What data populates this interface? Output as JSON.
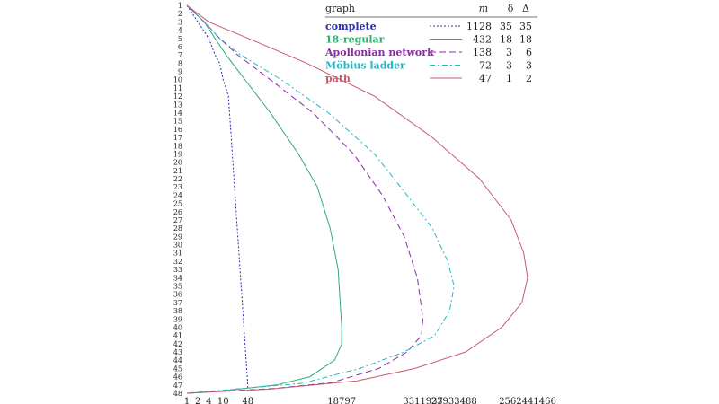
{
  "chart_data": {
    "type": "line",
    "title": "",
    "xlabel": "",
    "ylabel": "",
    "x_scale": "log",
    "x_ticks": [
      1,
      2,
      4,
      10,
      48,
      18797,
      3311937,
      23933488,
      2562441466
    ],
    "y_ticks": [
      1,
      2,
      3,
      4,
      5,
      6,
      7,
      8,
      9,
      10,
      11,
      12,
      13,
      14,
      15,
      16,
      17,
      18,
      19,
      20,
      21,
      22,
      23,
      24,
      25,
      26,
      27,
      28,
      29,
      30,
      31,
      32,
      33,
      34,
      35,
      36,
      37,
      38,
      39,
      40,
      41,
      42,
      43,
      44,
      45,
      46,
      47,
      48
    ],
    "y_inverted": true,
    "grid": false,
    "legend": {
      "placement": "top-right",
      "headers": {
        "graph": "graph",
        "m": "m",
        "delta_min": "δ",
        "delta_max": "Δ"
      }
    },
    "series": [
      {
        "name": "complete",
        "m": "1128",
        "delta_min": "35",
        "delta_max": "35",
        "color": "#2a2ab4",
        "dash": "2,2",
        "points": [
          [
            1,
            1
          ],
          [
            2,
            3
          ],
          [
            4,
            5
          ],
          [
            6,
            7
          ],
          [
            8,
            8
          ],
          [
            10,
            10
          ],
          [
            14,
            12
          ],
          [
            48,
            47
          ],
          [
            48,
            48
          ]
        ]
      },
      {
        "name": "18-regular",
        "m": "432",
        "delta_min": "18",
        "delta_max": "18",
        "color": "#2fae6e",
        "dash": "",
        "points": [
          [
            1,
            1
          ],
          [
            3,
            3
          ],
          [
            6,
            5
          ],
          [
            12,
            7
          ],
          [
            40,
            10
          ],
          [
            200,
            14
          ],
          [
            1200,
            19
          ],
          [
            4000,
            23
          ],
          [
            9000,
            28
          ],
          [
            15000,
            33
          ],
          [
            18797,
            40
          ],
          [
            18797,
            42
          ],
          [
            12000,
            44
          ],
          [
            2500,
            46
          ],
          [
            300,
            47
          ],
          [
            10,
            47.7
          ],
          [
            1,
            48
          ]
        ]
      },
      {
        "name": "Apollonian network",
        "m": "138",
        "delta_min": "3",
        "delta_max": "6",
        "color": "#8b2aa8",
        "dash": "7,4",
        "points": [
          [
            1,
            1
          ],
          [
            3,
            3
          ],
          [
            8,
            5
          ],
          [
            25,
            7
          ],
          [
            200,
            10
          ],
          [
            3000,
            14
          ],
          [
            40000,
            19
          ],
          [
            250000,
            24
          ],
          [
            1000000,
            29
          ],
          [
            2300000,
            34
          ],
          [
            3311937,
            39
          ],
          [
            3000000,
            41
          ],
          [
            1200000,
            43
          ],
          [
            200000,
            45
          ],
          [
            10000,
            46.7
          ],
          [
            300,
            47.4
          ],
          [
            1,
            48
          ]
        ]
      },
      {
        "name": "Möbius ladder",
        "m": "72",
        "delta_min": "3",
        "delta_max": "3",
        "color": "#23b6c6",
        "dash": "6,3,2,3",
        "points": [
          [
            1,
            1
          ],
          [
            3,
            3
          ],
          [
            8,
            5
          ],
          [
            30,
            7
          ],
          [
            400,
            10
          ],
          [
            8000,
            14
          ],
          [
            150000,
            19
          ],
          [
            1200000,
            24
          ],
          [
            6000000,
            28
          ],
          [
            16000000,
            32
          ],
          [
            23933488,
            35
          ],
          [
            18000000,
            38
          ],
          [
            7000000,
            41
          ],
          [
            1000000,
            43
          ],
          [
            60000,
            45
          ],
          [
            1500,
            46.8
          ],
          [
            1,
            48
          ]
        ]
      },
      {
        "name": "path",
        "m": "47",
        "delta_min": "1",
        "delta_max": "2",
        "color": "#c85a6c",
        "dash": "",
        "points": [
          [
            1,
            1
          ],
          [
            4,
            3
          ],
          [
            50,
            5
          ],
          [
            2000,
            8
          ],
          [
            150000,
            12
          ],
          [
            6000000,
            17
          ],
          [
            120000000,
            22
          ],
          [
            900000000,
            27
          ],
          [
            2000000000,
            31
          ],
          [
            2562441466,
            34
          ],
          [
            1800000000,
            37
          ],
          [
            500000000,
            40
          ],
          [
            50000000,
            43
          ],
          [
            2000000,
            45
          ],
          [
            50000,
            46.5
          ],
          [
            200,
            47.5
          ],
          [
            1,
            48
          ]
        ]
      }
    ]
  }
}
